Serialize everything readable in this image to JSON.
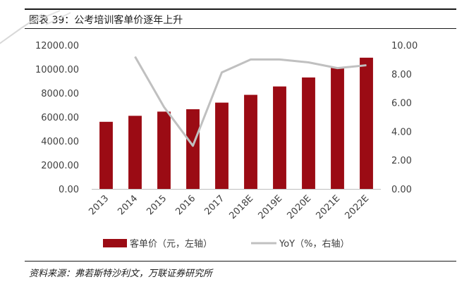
{
  "header": {
    "title": "图表 39：公考培训客单价逐年上升"
  },
  "footer": {
    "source": "资料来源：弗若斯特沙利文，万联证券研究所"
  },
  "colors": {
    "bar": "#9b0b14",
    "line": "#c0c0c0",
    "axis": "#bfbfbf"
  },
  "chart_data": {
    "type": "bar",
    "categories": [
      "2013",
      "2014",
      "2015",
      "2016",
      "2017",
      "2018E",
      "2019E",
      "2020E",
      "2021E",
      "2022E"
    ],
    "series": [
      {
        "name": "客单价（元，左轴）",
        "type": "bar",
        "axis": "left",
        "values": [
          5600,
          6100,
          6450,
          6650,
          7200,
          7850,
          8550,
          9300,
          10100,
          10950
        ]
      },
      {
        "name": "YoY（%，右轴）",
        "type": "line",
        "axis": "right",
        "values": [
          null,
          9.2,
          5.7,
          3.0,
          8.1,
          9.0,
          9.0,
          8.8,
          8.4,
          8.6
        ]
      }
    ],
    "ylim_left": [
      0,
      12000
    ],
    "ylim_right": [
      0,
      10
    ],
    "yticks_left": [
      "0.00",
      "2000.00",
      "4000.00",
      "6000.00",
      "8000.00",
      "10000.00",
      "12000.00"
    ],
    "yticks_right": [
      "0.00",
      "2.00",
      "4.00",
      "6.00",
      "8.00",
      "10.00"
    ],
    "grid": false,
    "legend_position": "bottom"
  }
}
